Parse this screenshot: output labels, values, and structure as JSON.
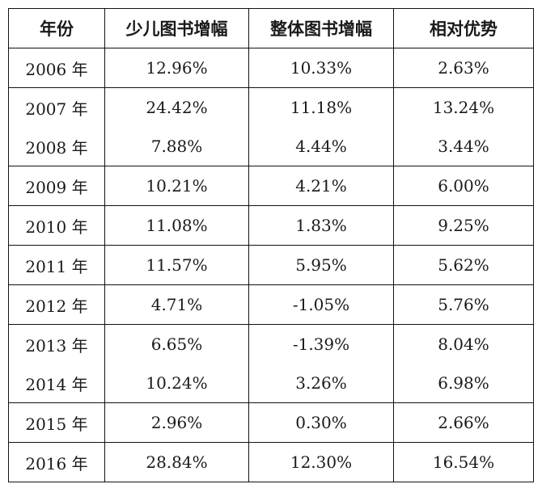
{
  "table": {
    "headers": [
      "年份",
      "少儿图书增幅",
      "整体图书增幅",
      "相对优势"
    ],
    "rows": [
      {
        "year": "2006 年",
        "children": "12.96%",
        "overall": "10.33%",
        "advantage": "2.63%"
      },
      {
        "year": "2007 年",
        "children": "24.42%",
        "overall": "11.18%",
        "advantage": "13.24%"
      },
      {
        "year": "2008 年",
        "children": "7.88%",
        "overall": "4.44%",
        "advantage": "3.44%"
      },
      {
        "year": "2009 年",
        "children": "10.21%",
        "overall": "4.21%",
        "advantage": "6.00%"
      },
      {
        "year": "2010 年",
        "children": "11.08%",
        "overall": "1.83%",
        "advantage": "9.25%"
      },
      {
        "year": "2011 年",
        "children": "11.57%",
        "overall": "5.95%",
        "advantage": "5.62%"
      },
      {
        "year": "2012 年",
        "children": "4.71%",
        "overall": "-1.05%",
        "advantage": "5.76%"
      },
      {
        "year": "2013 年",
        "children": "6.65%",
        "overall": "-1.39%",
        "advantage": "8.04%"
      },
      {
        "year": "2014 年",
        "children": "10.24%",
        "overall": "3.26%",
        "advantage": "6.98%"
      },
      {
        "year": "2015 年",
        "children": "2.96%",
        "overall": "0.30%",
        "advantage": "2.66%"
      },
      {
        "year": "2016 年",
        "children": "28.84%",
        "overall": "12.30%",
        "advantage": "16.54%"
      }
    ]
  }
}
